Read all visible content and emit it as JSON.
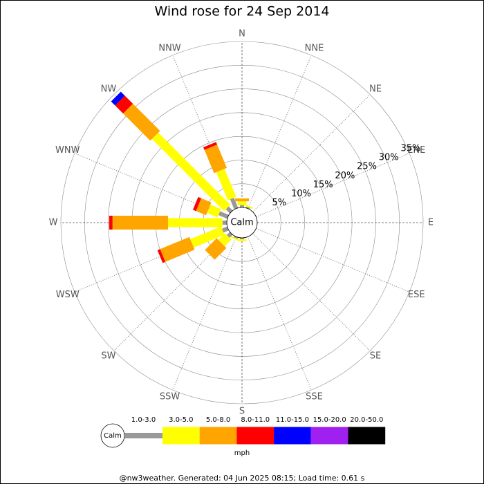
{
  "chart_data": {
    "type": "windrose",
    "title": "Wind rose for 24 Sep 2014",
    "categories": [
      "N",
      "NNE",
      "NE",
      "ENE",
      "E",
      "ESE",
      "SE",
      "SSE",
      "S",
      "SSW",
      "SW",
      "WSW",
      "W",
      "WNW",
      "NW",
      "NNW"
    ],
    "center_label": "Calm",
    "series": [
      {
        "name": "1.0-3.0",
        "color": "#999999",
        "values": [
          0.5,
          0.3,
          0,
          0,
          0,
          0,
          0,
          0,
          0.3,
          0.3,
          0.9,
          1.2,
          0.9,
          2.0,
          1.2,
          2.3
        ]
      },
      {
        "name": "3.0-5.0",
        "color": "#ffff00",
        "values": [
          0.8,
          0.3,
          0,
          0,
          0,
          0,
          0,
          0,
          0.4,
          0.3,
          2.0,
          7.0,
          11.5,
          2.4,
          21.5,
          6.4
        ]
      },
      {
        "name": "5.0-8.0",
        "color": "#ffa500",
        "values": [
          0.6,
          0,
          0,
          0,
          0,
          0,
          0,
          0,
          0,
          0,
          3.5,
          6.7,
          11.7,
          2.3,
          8.1,
          5.3
        ]
      },
      {
        "name": "8.0-11.0",
        "color": "#ff0000",
        "values": [
          0,
          0,
          0,
          0,
          0,
          0,
          0,
          0,
          0,
          0,
          0,
          0.6,
          0.7,
          0.7,
          2.4,
          0.6
        ]
      },
      {
        "name": "11.0-15.0",
        "color": "#0000ff",
        "values": [
          0,
          0,
          0,
          0,
          0,
          0,
          0,
          0,
          0,
          0,
          0,
          0,
          0,
          0,
          1.2,
          0
        ]
      },
      {
        "name": "15.0-20.0",
        "color": "#a020f0",
        "values": [
          0,
          0,
          0,
          0,
          0,
          0,
          0,
          0,
          0,
          0,
          0,
          0,
          0,
          0,
          0,
          0
        ]
      },
      {
        "name": "20.0-50.0",
        "color": "#000000",
        "values": [
          0,
          0,
          0,
          0,
          0,
          0,
          0,
          0,
          0,
          0,
          0,
          0,
          0,
          0,
          0,
          0
        ]
      }
    ],
    "rlim": [
      0,
      35
    ],
    "rticks": [
      {
        "value": 5,
        "label": "5%"
      },
      {
        "value": 10,
        "label": "10%"
      },
      {
        "value": 15,
        "label": "15%"
      },
      {
        "value": 20,
        "label": "20%"
      },
      {
        "value": 25,
        "label": "25%"
      },
      {
        "value": 30,
        "label": "30%"
      },
      {
        "value": 35,
        "label": "35%"
      }
    ],
    "legend_unit": "mph",
    "footer": "@nw3weather. Generated: 04 Jun 2025 08:15; Load time: 0.61 s"
  }
}
